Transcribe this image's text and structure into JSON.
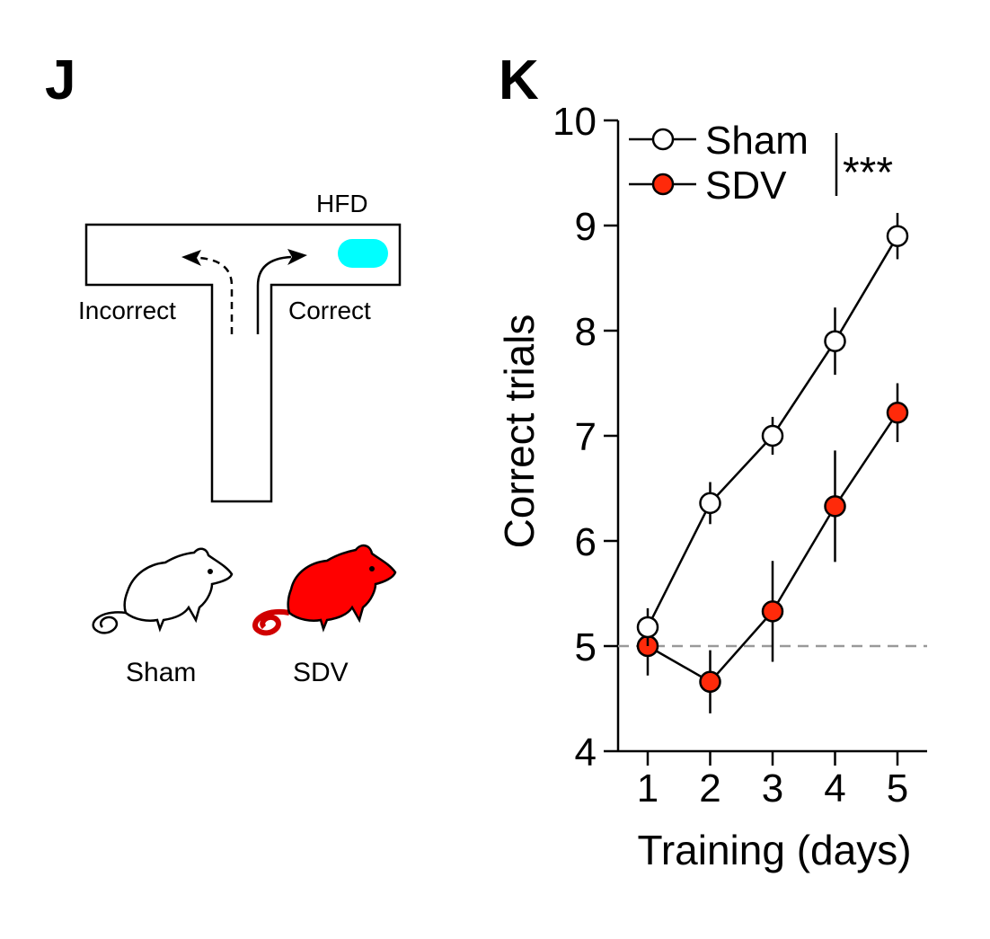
{
  "panel_j": {
    "letter": "J",
    "food_label": "HFD",
    "left_arm_label": "Incorrect",
    "right_arm_label": "Correct",
    "food_color": "#00FFFF",
    "groups": [
      {
        "label": "Sham",
        "fill": "#FFFFFF"
      },
      {
        "label": "SDV",
        "fill": "#FF0000"
      }
    ]
  },
  "panel_k": {
    "letter": "K",
    "significance": "***"
  },
  "chart_data": {
    "type": "line",
    "title": "",
    "xlabel": "Training (days)",
    "ylabel": "Correct trials",
    "x": [
      1,
      2,
      3,
      4,
      5
    ],
    "xticks": [
      "1",
      "2",
      "3",
      "4",
      "5"
    ],
    "xlim": [
      0.5,
      5.5
    ],
    "ylim": [
      4,
      10
    ],
    "yticks": [
      "4",
      "5",
      "6",
      "7",
      "8",
      "9",
      "10"
    ],
    "grid": false,
    "legend_position": "top-left",
    "reference_line": {
      "y": 5,
      "style": "dashed",
      "color": "#999999"
    },
    "series": [
      {
        "name": "Sham",
        "marker_fill": "#FFFFFF",
        "values": [
          5.18,
          6.36,
          7.0,
          7.9,
          8.9
        ],
        "errors": [
          0.18,
          0.2,
          0.18,
          0.32,
          0.22
        ]
      },
      {
        "name": "SDV",
        "marker_fill": "#FF2A0A",
        "values": [
          5.0,
          4.66,
          5.33,
          6.33,
          7.22
        ],
        "errors": [
          0.28,
          0.3,
          0.48,
          0.53,
          0.28
        ]
      }
    ]
  }
}
